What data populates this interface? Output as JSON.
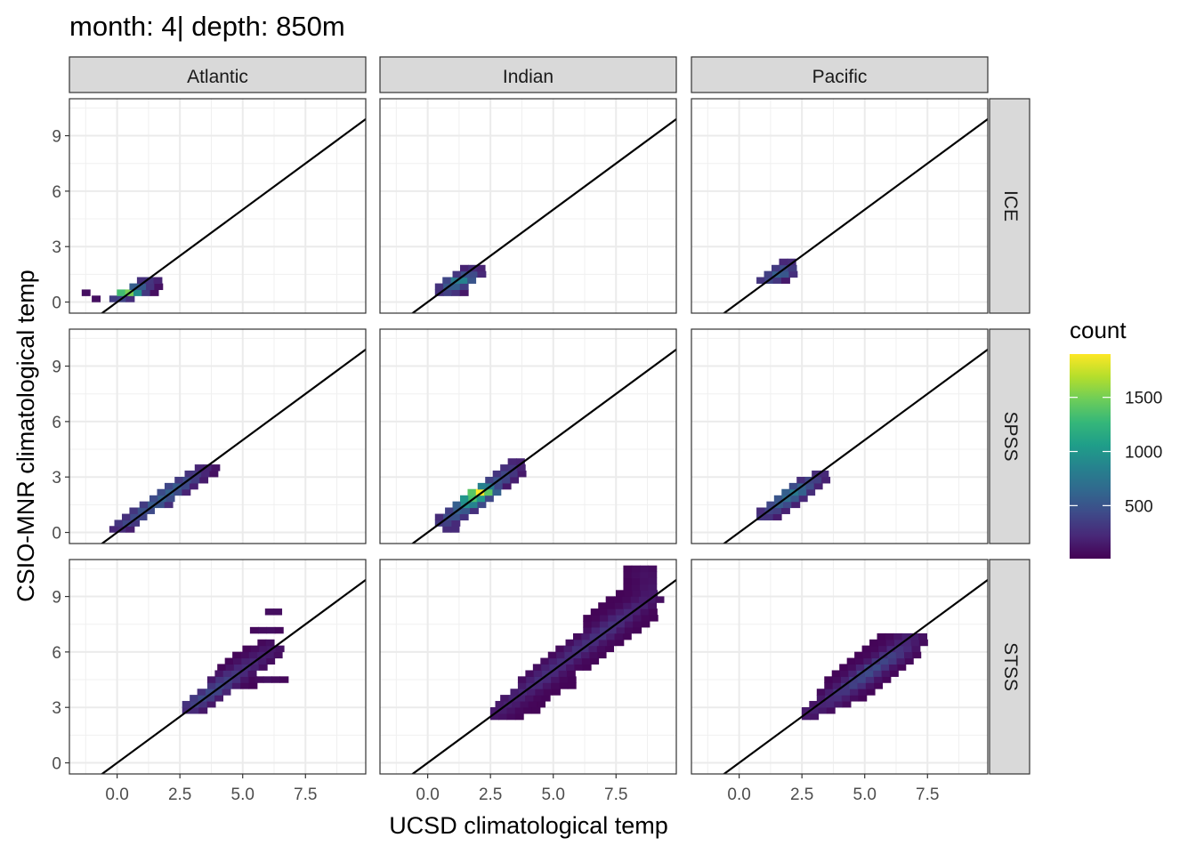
{
  "title": "month: 4| depth: 850m",
  "chart_data": {
    "type": "heatmap",
    "facet_columns": [
      "Atlantic",
      "Indian",
      "Pacific"
    ],
    "facet_rows": [
      "ICE",
      "SPSS",
      "STSS"
    ],
    "xlabel": "UCSD climatological temp",
    "ylabel": "CSIO-MNR climatological temp",
    "x_ticks": [
      "0.0",
      "2.5",
      "5.0",
      "7.5"
    ],
    "y_ticks": [
      "0",
      "3",
      "6",
      "9"
    ],
    "xlim": [
      -1.9,
      9.9
    ],
    "ylim": [
      -0.6,
      11.0
    ],
    "reference_line": {
      "intercept": 0,
      "slope": 1
    },
    "grid": true,
    "legend": {
      "title": "count",
      "position": "right",
      "ticks": [
        "500",
        "1000",
        "1500"
      ],
      "range": [
        10,
        1900
      ],
      "colors": [
        "#440154",
        "#482878",
        "#3E4A89",
        "#31688E",
        "#26828E",
        "#1F9E89",
        "#35B779",
        "#6DCD59",
        "#B4DE2C",
        "#FDE725"
      ]
    },
    "bin_width": 0.33,
    "panels": [
      {
        "col": "Atlantic",
        "row": "ICE",
        "bands": [
          {
            "y": 0.17,
            "x": [
              -0.3,
              0.6
            ],
            "peak": 0.2,
            "c": 0.1
          },
          {
            "y": 0.5,
            "x": [
              0.0,
              1.4
            ],
            "peak": 0.8,
            "c": 0.4
          },
          {
            "y": 0.83,
            "x": [
              0.5,
              1.7
            ],
            "peak": 0.3,
            "c": 0.8
          },
          {
            "y": 1.17,
            "x": [
              0.8,
              1.7
            ],
            "peak": 0.15,
            "c": 1.2
          },
          {
            "y": 0.5,
            "x": [
              -1.4,
              -1.1
            ],
            "peak": 0.03,
            "c": -1.2
          },
          {
            "y": 0.17,
            "x": [
              -1.0,
              -0.7
            ],
            "peak": 0.03,
            "c": -0.8
          }
        ]
      },
      {
        "col": "Indian",
        "row": "ICE",
        "bands": [
          {
            "y": 0.5,
            "x": [
              0.3,
              1.3
            ],
            "peak": 0.18,
            "c": 0.8
          },
          {
            "y": 0.83,
            "x": [
              0.3,
              1.6
            ],
            "peak": 0.3,
            "c": 1.0
          },
          {
            "y": 1.17,
            "x": [
              0.6,
              1.9
            ],
            "peak": 0.45,
            "c": 1.3
          },
          {
            "y": 1.5,
            "x": [
              1.0,
              2.0
            ],
            "peak": 0.25,
            "c": 1.6
          },
          {
            "y": 1.83,
            "x": [
              1.3,
              2.0
            ],
            "peak": 0.12,
            "c": 1.8
          }
        ]
      },
      {
        "col": "Pacific",
        "row": "ICE",
        "bands": [
          {
            "y": 1.17,
            "x": [
              0.7,
              1.8
            ],
            "peak": 0.2,
            "c": 1.2
          },
          {
            "y": 1.5,
            "x": [
              1.0,
              2.1
            ],
            "peak": 0.3,
            "c": 1.6
          },
          {
            "y": 1.83,
            "x": [
              1.3,
              2.1
            ],
            "peak": 0.22,
            "c": 1.8
          },
          {
            "y": 2.17,
            "x": [
              1.6,
              2.1
            ],
            "peak": 0.12,
            "c": 2.0
          }
        ]
      },
      {
        "col": "Atlantic",
        "row": "SPSS",
        "bands": [
          {
            "y": 0.17,
            "x": [
              -0.3,
              0.4
            ],
            "peak": 0.12,
            "c": 0.1
          },
          {
            "y": 0.5,
            "x": [
              -0.1,
              0.8
            ],
            "peak": 0.2,
            "c": 0.4
          },
          {
            "y": 0.83,
            "x": [
              0.2,
              1.1
            ],
            "peak": 0.22,
            "c": 0.8
          },
          {
            "y": 1.17,
            "x": [
              0.5,
              1.4
            ],
            "peak": 0.25,
            "c": 1.1
          },
          {
            "y": 1.5,
            "x": [
              0.9,
              1.9
            ],
            "peak": 0.28,
            "c": 1.5
          },
          {
            "y": 1.83,
            "x": [
              1.3,
              2.2
            ],
            "peak": 0.3,
            "c": 1.8
          },
          {
            "y": 2.17,
            "x": [
              1.6,
              2.6
            ],
            "peak": 0.3,
            "c": 2.1
          },
          {
            "y": 2.5,
            "x": [
              1.9,
              2.9
            ],
            "peak": 0.28,
            "c": 2.4
          },
          {
            "y": 2.83,
            "x": [
              2.3,
              3.3
            ],
            "peak": 0.22,
            "c": 2.8
          },
          {
            "y": 3.17,
            "x": [
              2.7,
              3.9
            ],
            "peak": 0.16,
            "c": 3.1
          },
          {
            "y": 3.5,
            "x": [
              3.1,
              3.9
            ],
            "peak": 0.1,
            "c": 3.4
          }
        ]
      },
      {
        "col": "Indian",
        "row": "SPSS",
        "bands": [
          {
            "y": 0.17,
            "x": [
              0.6,
              1.2
            ],
            "peak": 0.12,
            "c": 0.9
          },
          {
            "y": 0.5,
            "x": [
              0.3,
              1.2
            ],
            "peak": 0.18,
            "c": 0.7
          },
          {
            "y": 0.83,
            "x": [
              0.3,
              1.5
            ],
            "peak": 0.25,
            "c": 1.0
          },
          {
            "y": 1.17,
            "x": [
              0.7,
              1.8
            ],
            "peak": 0.3,
            "c": 1.3
          },
          {
            "y": 1.5,
            "x": [
              1.0,
              2.2
            ],
            "peak": 0.5,
            "c": 1.6
          },
          {
            "y": 1.83,
            "x": [
              1.3,
              2.4
            ],
            "peak": 0.7,
            "c": 1.8
          },
          {
            "y": 2.17,
            "x": [
              1.6,
              2.8
            ],
            "peak": 1.0,
            "c": 2.1
          },
          {
            "y": 2.5,
            "x": [
              2.0,
              3.1
            ],
            "peak": 0.45,
            "c": 2.3
          },
          {
            "y": 2.83,
            "x": [
              2.3,
              3.4
            ],
            "peak": 0.25,
            "c": 2.8
          },
          {
            "y": 3.17,
            "x": [
              2.6,
              3.8
            ],
            "peak": 0.2,
            "c": 3.1
          },
          {
            "y": 3.5,
            "x": [
              2.9,
              3.8
            ],
            "peak": 0.15,
            "c": 3.3
          },
          {
            "y": 3.83,
            "x": [
              3.2,
              3.8
            ],
            "peak": 0.1,
            "c": 3.5
          }
        ]
      },
      {
        "col": "Pacific",
        "row": "SPSS",
        "bands": [
          {
            "y": 0.83,
            "x": [
              0.7,
              1.5
            ],
            "peak": 0.15,
            "c": 1.0
          },
          {
            "y": 1.17,
            "x": [
              0.7,
              1.8
            ],
            "peak": 0.2,
            "c": 1.3
          },
          {
            "y": 1.5,
            "x": [
              1.1,
              2.2
            ],
            "peak": 0.28,
            "c": 1.6
          },
          {
            "y": 1.83,
            "x": [
              1.4,
              2.5
            ],
            "peak": 0.35,
            "c": 1.9
          },
          {
            "y": 2.17,
            "x": [
              1.7,
              2.8
            ],
            "peak": 0.4,
            "c": 2.2
          },
          {
            "y": 2.5,
            "x": [
              2.0,
              3.3
            ],
            "peak": 0.3,
            "c": 2.5
          },
          {
            "y": 2.83,
            "x": [
              2.3,
              3.5
            ],
            "peak": 0.2,
            "c": 2.9
          },
          {
            "y": 3.17,
            "x": [
              2.9,
              3.5
            ],
            "peak": 0.12,
            "c": 3.2
          }
        ]
      },
      {
        "col": "Atlantic",
        "row": "STSS",
        "bands": [
          {
            "y": 2.83,
            "x": [
              2.6,
              3.3
            ],
            "peak": 0.12,
            "c": 2.9
          },
          {
            "y": 3.17,
            "x": [
              2.6,
              3.6
            ],
            "peak": 0.18,
            "c": 3.1
          },
          {
            "y": 3.5,
            "x": [
              2.9,
              4.0
            ],
            "peak": 0.22,
            "c": 3.4
          },
          {
            "y": 3.83,
            "x": [
              3.2,
              4.4
            ],
            "peak": 0.22,
            "c": 3.8
          },
          {
            "y": 4.17,
            "x": [
              3.6,
              5.4
            ],
            "peak": 0.2,
            "c": 4.1
          },
          {
            "y": 4.5,
            "x": [
              3.6,
              5.4
            ],
            "peak": 0.18,
            "c": 4.4
          },
          {
            "y": 4.83,
            "x": [
              3.9,
              5.4
            ],
            "peak": 0.15,
            "c": 4.7
          },
          {
            "y": 5.17,
            "x": [
              4.0,
              5.7
            ],
            "peak": 0.12,
            "c": 5.1
          },
          {
            "y": 5.5,
            "x": [
              4.3,
              6.0
            ],
            "peak": 0.1,
            "c": 5.4
          },
          {
            "y": 5.83,
            "x": [
              4.6,
              6.4
            ],
            "peak": 0.08,
            "c": 5.8
          },
          {
            "y": 6.17,
            "x": [
              5.0,
              6.6
            ],
            "peak": 0.06,
            "c": 6.1
          },
          {
            "y": 6.5,
            "x": [
              5.6,
              6.2
            ],
            "peak": 0.04,
            "c": 6.4
          },
          {
            "y": 7.17,
            "x": [
              5.3,
              6.3
            ],
            "peak": 0.03,
            "c": 6.0
          },
          {
            "y": 8.17,
            "x": [
              5.9,
              6.5
            ],
            "peak": 0.03,
            "c": 6.2
          },
          {
            "y": 4.5,
            "x": [
              5.5,
              6.5
            ],
            "peak": 0.03,
            "c": 6.0
          }
        ]
      },
      {
        "col": "Indian",
        "row": "STSS",
        "bands": [
          {
            "y": 2.5,
            "x": [
              2.5,
              3.6
            ],
            "peak": 0.05,
            "c": 2.7
          },
          {
            "y": 2.83,
            "x": [
              2.5,
              4.2
            ],
            "peak": 0.07,
            "c": 2.9
          },
          {
            "y": 3.17,
            "x": [
              2.7,
              4.4
            ],
            "peak": 0.08,
            "c": 3.2
          },
          {
            "y": 3.5,
            "x": [
              2.9,
              4.8
            ],
            "peak": 0.09,
            "c": 3.5
          },
          {
            "y": 3.83,
            "x": [
              3.3,
              5.1
            ],
            "peak": 0.1,
            "c": 3.8
          },
          {
            "y": 4.17,
            "x": [
              3.6,
              5.6
            ],
            "peak": 0.11,
            "c": 4.2
          },
          {
            "y": 4.5,
            "x": [
              3.6,
              5.6
            ],
            "peak": 0.12,
            "c": 4.5
          },
          {
            "y": 4.83,
            "x": [
              3.9,
              5.8
            ],
            "peak": 0.12,
            "c": 4.8
          },
          {
            "y": 5.17,
            "x": [
              4.2,
              6.3
            ],
            "peak": 0.12,
            "c": 5.1
          },
          {
            "y": 5.5,
            "x": [
              4.5,
              6.6
            ],
            "peak": 0.12,
            "c": 5.4
          },
          {
            "y": 5.83,
            "x": [
              4.8,
              7.0
            ],
            "peak": 0.12,
            "c": 5.8
          },
          {
            "y": 6.17,
            "x": [
              5.1,
              7.4
            ],
            "peak": 0.13,
            "c": 6.1
          },
          {
            "y": 6.5,
            "x": [
              5.5,
              7.7
            ],
            "peak": 0.13,
            "c": 6.4
          },
          {
            "y": 6.83,
            "x": [
              5.8,
              8.0
            ],
            "peak": 0.14,
            "c": 6.8
          },
          {
            "y": 7.17,
            "x": [
              6.2,
              8.4
            ],
            "peak": 0.14,
            "c": 7.1
          },
          {
            "y": 7.5,
            "x": [
              6.2,
              8.8
            ],
            "peak": 0.13,
            "c": 7.4
          },
          {
            "y": 7.83,
            "x": [
              6.2,
              9.1
            ],
            "peak": 0.12,
            "c": 7.7
          },
          {
            "y": 8.17,
            "x": [
              6.5,
              9.1
            ],
            "peak": 0.1,
            "c": 8.0
          },
          {
            "y": 8.5,
            "x": [
              6.8,
              9.1
            ],
            "peak": 0.09,
            "c": 8.4
          },
          {
            "y": 8.83,
            "x": [
              7.1,
              9.1
            ],
            "peak": 0.07,
            "c": 8.7
          },
          {
            "y": 9.17,
            "x": [
              7.5,
              9.1
            ],
            "peak": 0.06,
            "c": 8.9
          },
          {
            "y": 9.5,
            "x": [
              7.8,
              9.1
            ],
            "peak": 0.05,
            "c": 8.9
          },
          {
            "y": 9.83,
            "x": [
              7.8,
              9.1
            ],
            "peak": 0.04,
            "c": 8.9
          },
          {
            "y": 10.17,
            "x": [
              7.8,
              9.1
            ],
            "peak": 0.04,
            "c": 8.7
          },
          {
            "y": 10.5,
            "x": [
              7.8,
              9.1
            ],
            "peak": 0.03,
            "c": 8.7
          }
        ]
      },
      {
        "col": "Pacific",
        "row": "STSS",
        "bands": [
          {
            "y": 2.5,
            "x": [
              2.5,
              3.1
            ],
            "peak": 0.06,
            "c": 2.7
          },
          {
            "y": 2.83,
            "x": [
              2.5,
              3.7
            ],
            "peak": 0.08,
            "c": 3.0
          },
          {
            "y": 3.17,
            "x": [
              2.8,
              4.3
            ],
            "peak": 0.1,
            "c": 3.5
          },
          {
            "y": 3.5,
            "x": [
              3.1,
              4.8
            ],
            "peak": 0.12,
            "c": 3.8
          },
          {
            "y": 3.83,
            "x": [
              3.1,
              5.2
            ],
            "peak": 0.15,
            "c": 4.1
          },
          {
            "y": 4.17,
            "x": [
              3.4,
              5.5
            ],
            "peak": 0.18,
            "c": 4.5
          },
          {
            "y": 4.5,
            "x": [
              3.4,
              5.9
            ],
            "peak": 0.2,
            "c": 4.8
          },
          {
            "y": 4.83,
            "x": [
              3.7,
              6.2
            ],
            "peak": 0.22,
            "c": 5.1
          },
          {
            "y": 5.17,
            "x": [
              4.0,
              6.5
            ],
            "peak": 0.22,
            "c": 5.4
          },
          {
            "y": 5.5,
            "x": [
              4.3,
              6.8
            ],
            "peak": 0.2,
            "c": 5.8
          },
          {
            "y": 5.83,
            "x": [
              4.6,
              7.2
            ],
            "peak": 0.18,
            "c": 6.1
          },
          {
            "y": 6.17,
            "x": [
              4.9,
              7.2
            ],
            "peak": 0.14,
            "c": 6.4
          },
          {
            "y": 6.5,
            "x": [
              5.2,
              7.2
            ],
            "peak": 0.1,
            "c": 6.6
          },
          {
            "y": 6.83,
            "x": [
              5.5,
              7.2
            ],
            "peak": 0.08,
            "c": 6.8
          }
        ]
      }
    ]
  }
}
